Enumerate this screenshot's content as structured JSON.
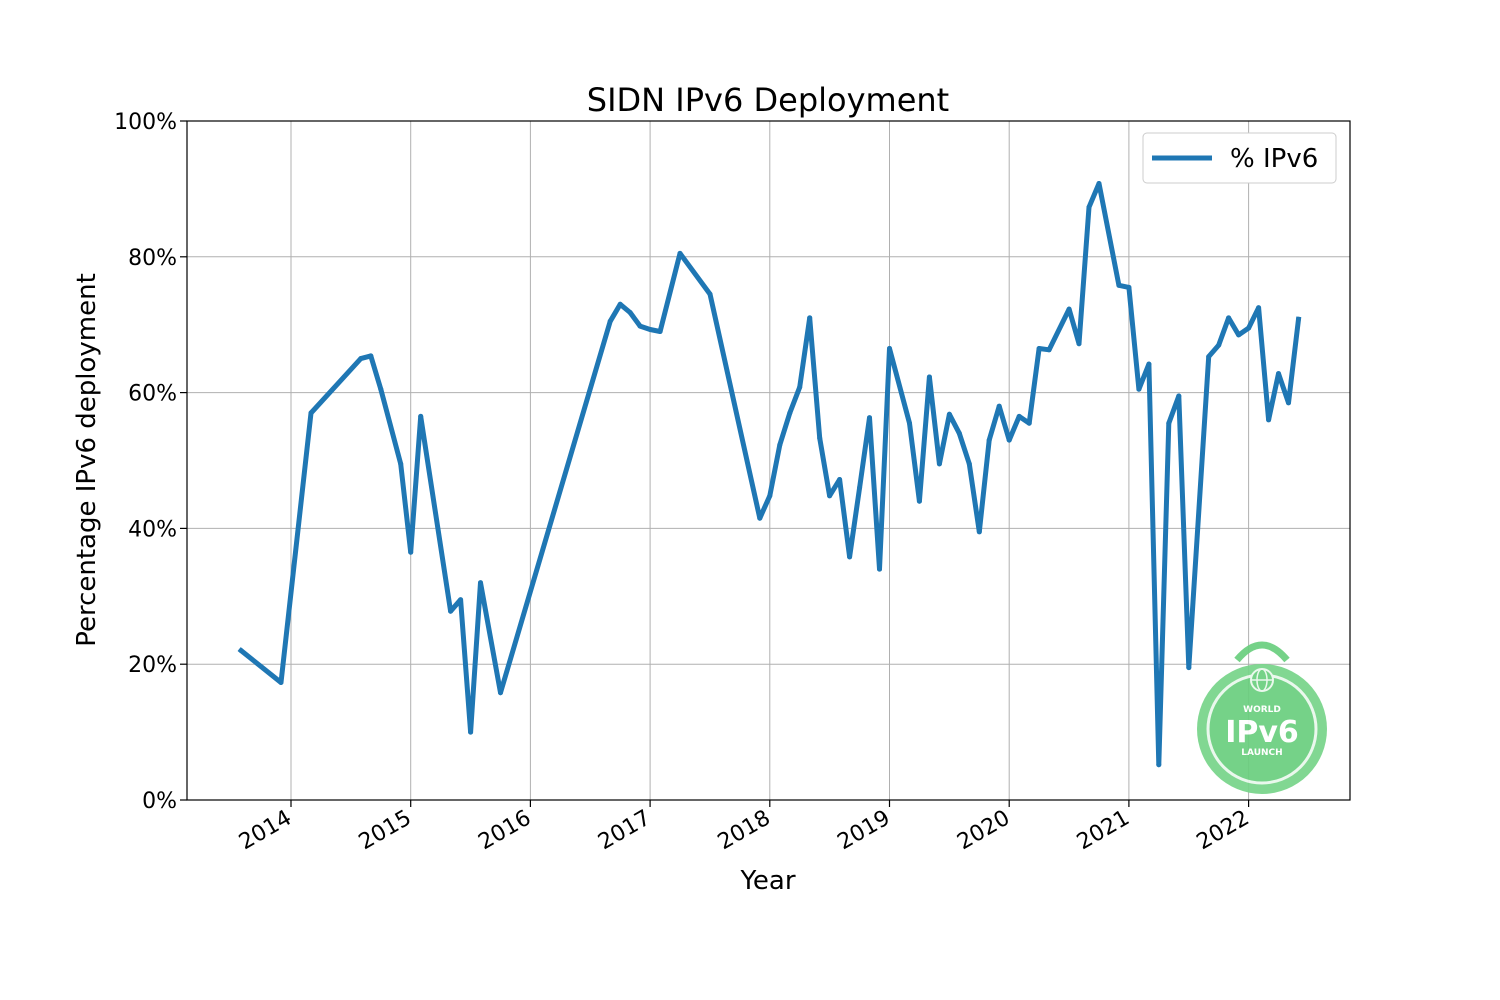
{
  "chart_data": {
    "type": "line",
    "title": "SIDN IPv6 Deployment",
    "xlabel": "Year",
    "ylabel": "Percentage IPv6 deployment",
    "ylim": [
      0,
      100
    ],
    "y_ticks": [
      "0%",
      "20%",
      "40%",
      "60%",
      "80%",
      "100%"
    ],
    "x_ticks": [
      "2014",
      "2015",
      "2016",
      "2017",
      "2018",
      "2019",
      "2020",
      "2021",
      "2022"
    ],
    "grid": true,
    "legend": "top-right",
    "series": [
      {
        "name": "% IPv6",
        "color": "#1f77b4",
        "x": [
          "2013-08",
          "2013-12",
          "2014-03",
          "2014-08",
          "2014-09",
          "2014-10",
          "2014-12",
          "2015-01",
          "2015-02",
          "2015-05",
          "2015-06",
          "2015-07",
          "2015-08",
          "2015-10",
          "2016-09",
          "2016-10",
          "2016-11",
          "2016-12",
          "2017-01",
          "2017-02",
          "2017-04",
          "2017-07",
          "2017-12",
          "2018-01",
          "2018-02",
          "2018-03",
          "2018-04",
          "2018-05",
          "2018-06",
          "2018-07",
          "2018-08",
          "2018-09",
          "2018-10",
          "2018-11",
          "2018-12",
          "2019-01",
          "2019-03",
          "2019-04",
          "2019-05",
          "2019-06",
          "2019-07",
          "2019-08",
          "2019-09",
          "2019-10",
          "2019-11",
          "2019-12",
          "2020-01",
          "2020-02",
          "2020-03",
          "2020-04",
          "2020-05",
          "2020-07",
          "2020-08",
          "2020-09",
          "2020-10",
          "2020-12",
          "2021-01",
          "2021-02",
          "2021-03",
          "2021-04",
          "2021-05",
          "2021-06",
          "2021-07",
          "2021-09",
          "2021-10",
          "2021-11",
          "2021-12",
          "2022-01",
          "2022-02",
          "2022-03",
          "2022-04",
          "2022-05",
          "2022-06"
        ],
        "values": [
          22,
          17.3,
          57,
          65,
          65.4,
          60.5,
          49.5,
          36.5,
          56.5,
          27.8,
          29.5,
          10,
          32,
          15.8,
          70.5,
          73,
          71.8,
          69.8,
          69.3,
          69,
          80.5,
          74.5,
          41.5,
          44.8,
          52.3,
          57,
          60.8,
          71,
          53.3,
          44.8,
          47.2,
          35.8,
          46,
          56.3,
          34,
          66.5,
          55.5,
          44,
          62.3,
          49.5,
          56.8,
          54,
          49.5,
          39.5,
          53,
          58,
          53,
          56.5,
          55.5,
          66.5,
          66.3,
          72.3,
          67.2,
          87.3,
          90.8,
          75.8,
          75.5,
          60.5,
          64.2,
          5.2,
          55.5,
          59.5,
          19.5,
          65.3,
          67,
          71,
          68.5,
          69.5,
          72.5,
          56,
          62.8,
          58.5,
          70.8
        ]
      }
    ]
  },
  "badge": {
    "top_text": "WORLD",
    "main_text": "IPv6",
    "bottom_text": "LAUNCH",
    "color": "#6bcf7f"
  }
}
